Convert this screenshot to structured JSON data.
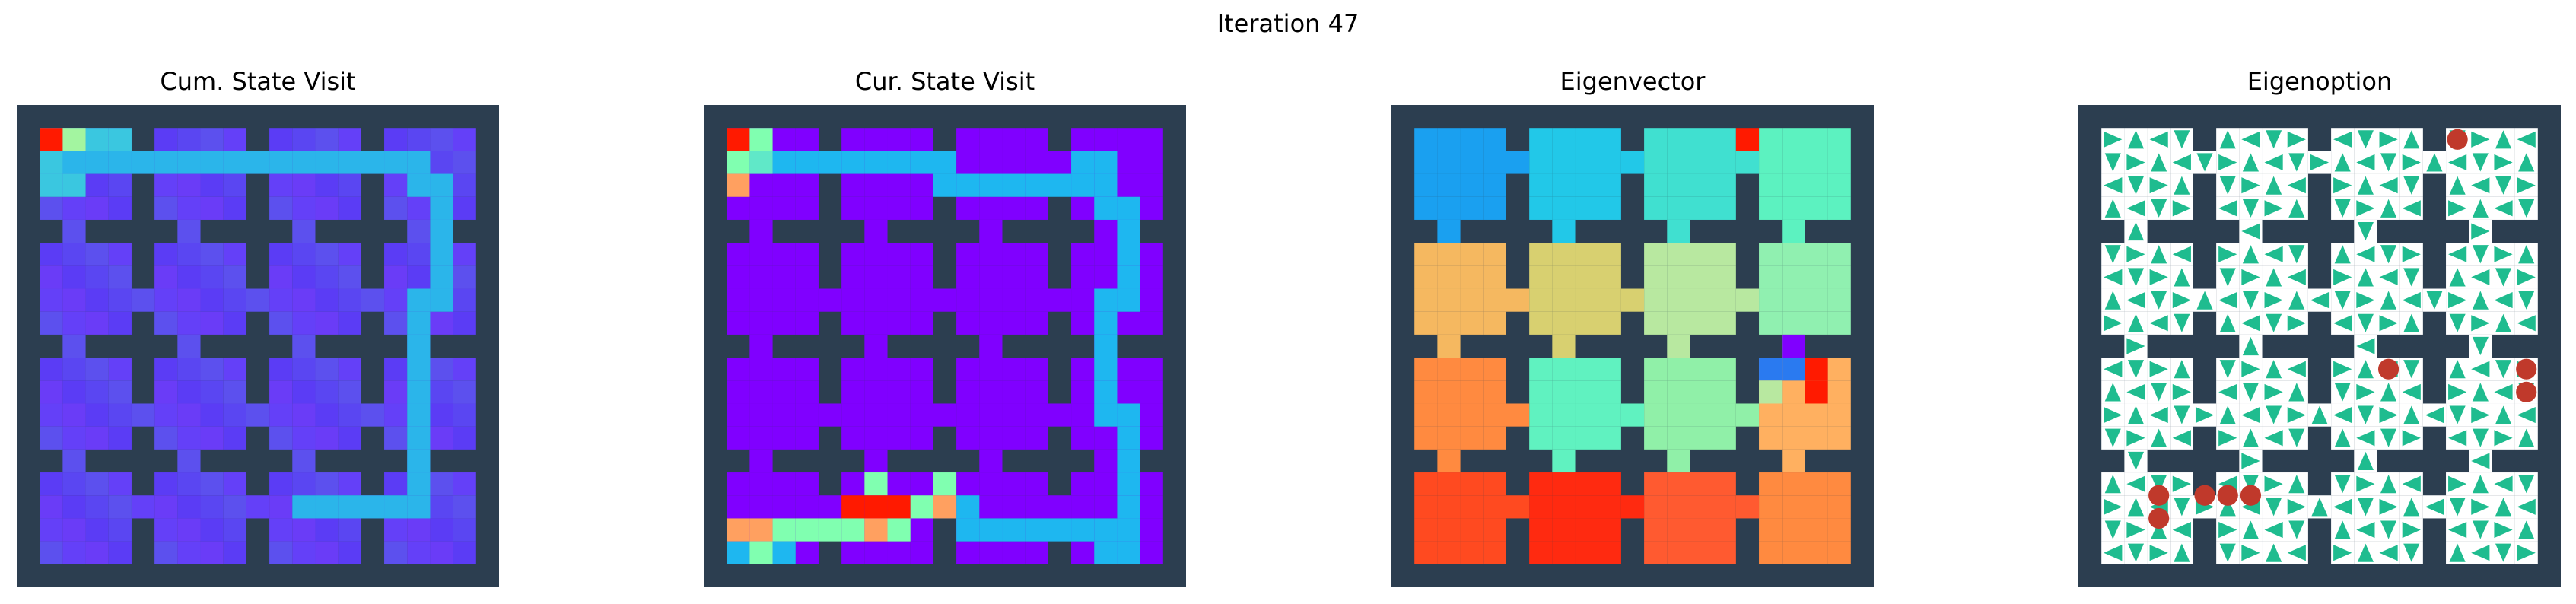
{
  "figure": {
    "title": "Iteration 47"
  },
  "colors": {
    "wall": "#2c3e50",
    "purple": "#8000ff",
    "teal": "#1fbc8f",
    "dot": "#c0392b"
  },
  "chart_data": [
    {
      "title": "Cum. State Visit",
      "type": "heatmap",
      "colormap": "rainbow",
      "layout": "four-by-four rooms of 4x4 cells, 1-cell walls, single-cell doorways",
      "description_of_values": "cumulative visitation, low (blue-violet) almost everywhere, higher (cyan/green) along top corridor and right column, max (red) at top-left cell"
    },
    {
      "title": "Cur. State Visit",
      "type": "heatmap",
      "colormap": "rainbow",
      "description_of_values": "current visitation; cyan path from top-left around the top rooms down the right column and across the bottom rooms; red at top-left and bottom room hotspot"
    },
    {
      "title": "Eigenvector",
      "type": "heatmap",
      "colormap": "rainbow",
      "description_of_values": "blue/cyan in top row of rooms, orange/yellow in second row, green centre, red/orange bottom row"
    },
    {
      "title": "Eigenoption",
      "type": "heatmap",
      "description_of_values": "teal triangles indicate option action directions per cell; red circles mark termination states"
    }
  ]
}
